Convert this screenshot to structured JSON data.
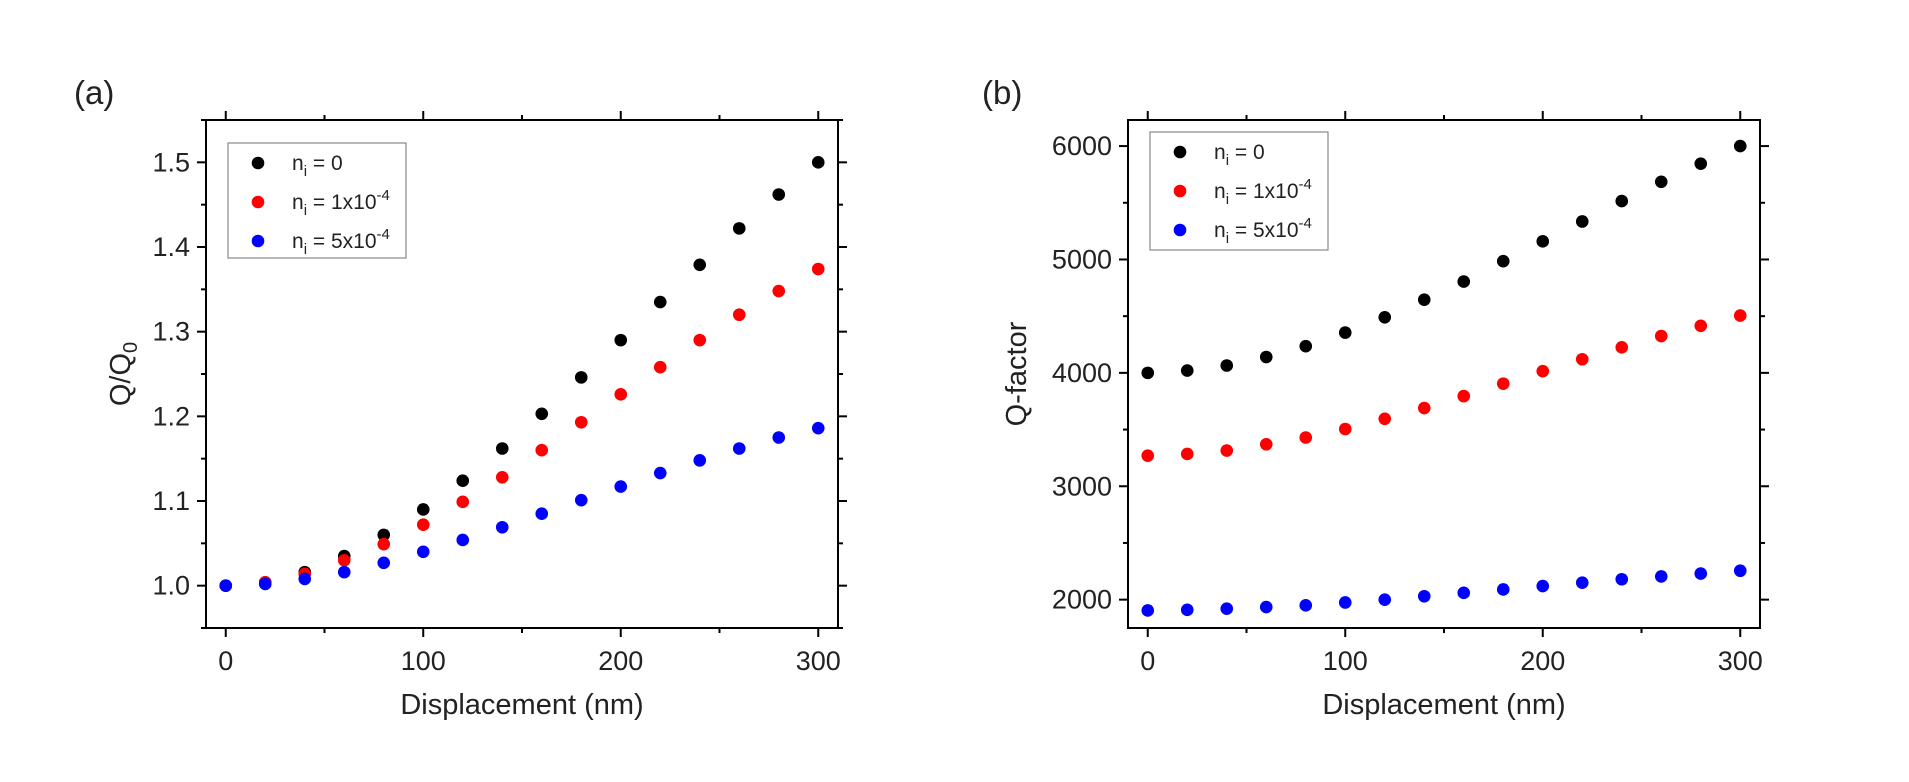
{
  "chart_data": [
    {
      "type": "scatter",
      "panel_label": "(a)",
      "xlabel": "Displacement (nm)",
      "ylabel": "Q/Q",
      "ylabel_sub": "0",
      "xlim": [
        -10,
        310
      ],
      "ylim": [
        0.95,
        1.55
      ],
      "xticks": [
        0,
        100,
        200,
        300
      ],
      "yticks": [
        1.0,
        1.1,
        1.2,
        1.3,
        1.4,
        1.5
      ],
      "ytick_labels": [
        "1.0",
        "1.1",
        "1.2",
        "1.3",
        "1.4",
        "1.5"
      ],
      "x": [
        0,
        20,
        40,
        60,
        80,
        100,
        120,
        140,
        160,
        180,
        200,
        220,
        240,
        260,
        280,
        300
      ],
      "series": [
        {
          "name": "n_i = 0",
          "label_main": "n",
          "label_sub": "i",
          "label_rest": " = 0",
          "label_sup": "",
          "color": "#000000",
          "values": [
            1.0,
            1.004,
            1.016,
            1.035,
            1.06,
            1.09,
            1.124,
            1.162,
            1.203,
            1.246,
            1.29,
            1.335,
            1.379,
            1.422,
            1.462,
            1.5
          ]
        },
        {
          "name": "n_i = 1x10^-4",
          "label_main": "n",
          "label_sub": "i",
          "label_rest": " = 1x10",
          "label_sup": "-4",
          "color": "#ff0000",
          "values": [
            1.0,
            1.004,
            1.014,
            1.03,
            1.049,
            1.072,
            1.099,
            1.128,
            1.16,
            1.193,
            1.226,
            1.258,
            1.29,
            1.32,
            1.348,
            1.374
          ]
        },
        {
          "name": "n_i = 5x10^-4",
          "label_main": "n",
          "label_sub": "i",
          "label_rest": " = 5x10",
          "label_sup": "-4",
          "color": "#0000ff",
          "values": [
            1.0,
            1.002,
            1.008,
            1.016,
            1.027,
            1.04,
            1.054,
            1.069,
            1.085,
            1.101,
            1.117,
            1.133,
            1.148,
            1.162,
            1.175,
            1.186
          ]
        }
      ],
      "legend": "top-left"
    },
    {
      "type": "scatter",
      "panel_label": "(b)",
      "xlabel": "Displacement (nm)",
      "ylabel": "Q-factor",
      "ylabel_sub": "",
      "xlim": [
        -10,
        310
      ],
      "ylim": [
        1750,
        6230
      ],
      "xticks": [
        0,
        100,
        200,
        300
      ],
      "yticks": [
        2000,
        3000,
        4000,
        5000,
        6000
      ],
      "ytick_labels": [
        "2000",
        "3000",
        "4000",
        "5000",
        "6000"
      ],
      "x": [
        0,
        20,
        40,
        60,
        80,
        100,
        120,
        140,
        160,
        180,
        200,
        220,
        240,
        260,
        280,
        300
      ],
      "series": [
        {
          "name": "n_i = 0",
          "label_main": "n",
          "label_sub": "i",
          "label_rest": " = 0",
          "label_sup": "",
          "color": "#000000",
          "values": [
            4000,
            4020,
            4065,
            4140,
            4235,
            4355,
            4490,
            4645,
            4805,
            4985,
            5160,
            5335,
            5515,
            5685,
            5845,
            6000
          ]
        },
        {
          "name": "n_i = 1x10^-4",
          "label_main": "n",
          "label_sub": "i",
          "label_rest": " = 1x10",
          "label_sup": "-4",
          "color": "#ff0000",
          "values": [
            3270,
            3285,
            3315,
            3370,
            3430,
            3505,
            3595,
            3690,
            3795,
            3905,
            4015,
            4120,
            4225,
            4325,
            4415,
            4505
          ]
        },
        {
          "name": "n_i = 5x10^-4",
          "label_main": "n",
          "label_sub": "i",
          "label_rest": " = 5x10",
          "label_sup": "-4",
          "color": "#0000ff",
          "values": [
            1905,
            1910,
            1920,
            1935,
            1950,
            1975,
            2000,
            2030,
            2060,
            2090,
            2120,
            2150,
            2180,
            2205,
            2230,
            2255
          ]
        }
      ],
      "legend": "top-left"
    }
  ]
}
